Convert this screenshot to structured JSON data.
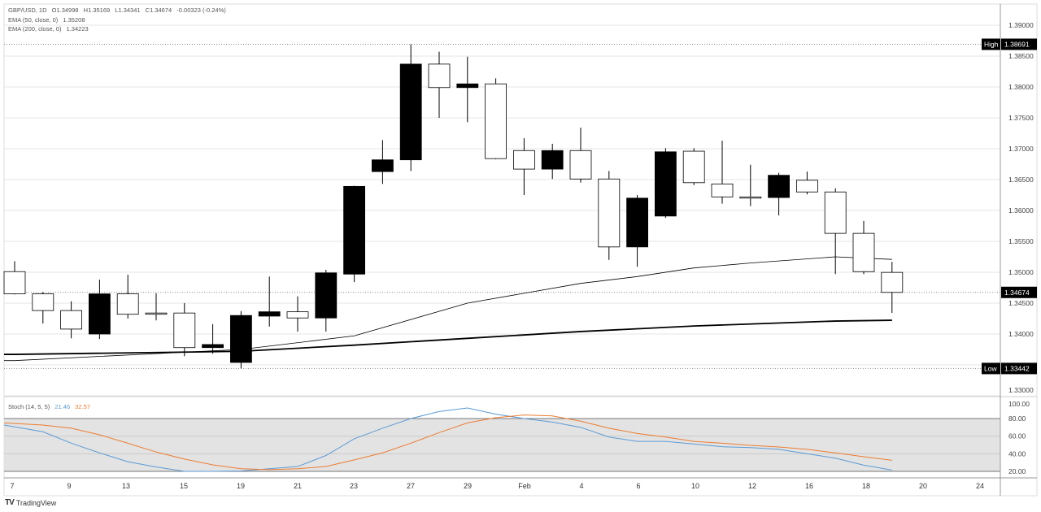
{
  "header": {
    "symbol": "GBP/USD, 1D",
    "open": "O1.34998",
    "high": "H1.35169",
    "low": "L1.34341",
    "close": "C1.34674",
    "change": "-0.00323 (-0.24%)",
    "ema50_label": "EMA (50, close, 0)",
    "ema50_value": "1.35208",
    "ema200_label": "EMA (200, close, 0)",
    "ema200_value": "1.34223"
  },
  "stoch_legend": {
    "label": "Stoch (14, 5, 5)",
    "k_value": "21.46",
    "d_value": "32.57"
  },
  "footer": {
    "logo_text": "TradingView"
  },
  "colors": {
    "up_fill": "#000000",
    "down_fill": "#ffffff",
    "candle_border": "#000000",
    "ema50": "#000000",
    "ema200": "#000000",
    "stoch_k": "#5b9bd5",
    "stoch_d": "#ed7d31",
    "stoch_band": "#e3e3e3"
  },
  "chart_data": [
    {
      "type": "candlestick",
      "title": "GBP/USD, 1D",
      "ylim": [
        1.3285,
        1.3915
      ],
      "y_ticks": [
        "1.39000",
        "1.38500",
        "1.38000",
        "1.37500",
        "1.37000",
        "1.36500",
        "1.36000",
        "1.35500",
        "1.35000",
        "1.34500",
        "1.34000",
        "1.33000"
      ],
      "x_tick_labels": [
        "7",
        "9",
        "13",
        "15",
        "19",
        "21",
        "23",
        "27",
        "29",
        "Feb",
        "4",
        "6",
        "10",
        "12",
        "16",
        "18",
        "20",
        "24"
      ],
      "grid": true,
      "markers": [
        {
          "label": "High",
          "value": "1.38691"
        },
        {
          "label": "",
          "value": "1.34674"
        },
        {
          "label": "Low",
          "value": "1.33442"
        }
      ],
      "candles": [
        {
          "o": 1.3501,
          "h": 1.3518,
          "l": 1.3464,
          "c": 1.3465
        },
        {
          "o": 1.3465,
          "h": 1.3468,
          "l": 1.3417,
          "c": 1.3438
        },
        {
          "o": 1.3438,
          "h": 1.3453,
          "l": 1.3393,
          "c": 1.3408
        },
        {
          "o": 1.34,
          "h": 1.3488,
          "l": 1.3392,
          "c": 1.3465
        },
        {
          "o": 1.3465,
          "h": 1.3496,
          "l": 1.3425,
          "c": 1.3432
        },
        {
          "o": 1.3434,
          "h": 1.3466,
          "l": 1.3422,
          "c": 1.3432
        },
        {
          "o": 1.3434,
          "h": 1.345,
          "l": 1.3364,
          "c": 1.3378
        },
        {
          "o": 1.3378,
          "h": 1.3416,
          "l": 1.3368,
          "c": 1.3383
        },
        {
          "o": 1.3354,
          "h": 1.3437,
          "l": 1.33442,
          "c": 1.343
        },
        {
          "o": 1.3429,
          "h": 1.3493,
          "l": 1.3412,
          "c": 1.3436
        },
        {
          "o": 1.3436,
          "h": 1.3461,
          "l": 1.3404,
          "c": 1.3426
        },
        {
          "o": 1.3426,
          "h": 1.3504,
          "l": 1.3404,
          "c": 1.3499
        },
        {
          "o": 1.3497,
          "h": 1.364,
          "l": 1.3484,
          "c": 1.3639
        },
        {
          "o": 1.3663,
          "h": 1.3714,
          "l": 1.3643,
          "c": 1.3682
        },
        {
          "o": 1.3682,
          "h": 1.38691,
          "l": 1.3664,
          "c": 1.3837
        },
        {
          "o": 1.3837,
          "h": 1.3857,
          "l": 1.375,
          "c": 1.3799
        },
        {
          "o": 1.3799,
          "h": 1.3849,
          "l": 1.3743,
          "c": 1.3805
        },
        {
          "o": 1.3805,
          "h": 1.3814,
          "l": 1.3683,
          "c": 1.3684
        },
        {
          "o": 1.3697,
          "h": 1.3717,
          "l": 1.3625,
          "c": 1.3667
        },
        {
          "o": 1.3667,
          "h": 1.3708,
          "l": 1.3651,
          "c": 1.3697
        },
        {
          "o": 1.3697,
          "h": 1.3734,
          "l": 1.3645,
          "c": 1.3651
        },
        {
          "o": 1.3651,
          "h": 1.3664,
          "l": 1.352,
          "c": 1.3541
        },
        {
          "o": 1.3541,
          "h": 1.3625,
          "l": 1.3509,
          "c": 1.362
        },
        {
          "o": 1.3591,
          "h": 1.3701,
          "l": 1.3588,
          "c": 1.3695
        },
        {
          "o": 1.3696,
          "h": 1.3701,
          "l": 1.3641,
          "c": 1.3645
        },
        {
          "o": 1.3643,
          "h": 1.3713,
          "l": 1.3611,
          "c": 1.3622
        },
        {
          "o": 1.3622,
          "h": 1.3674,
          "l": 1.3607,
          "c": 1.3622
        },
        {
          "o": 1.3621,
          "h": 1.3661,
          "l": 1.3592,
          "c": 1.3657
        },
        {
          "o": 1.3649,
          "h": 1.3663,
          "l": 1.3626,
          "c": 1.363
        },
        {
          "o": 1.363,
          "h": 1.3636,
          "l": 1.3497,
          "c": 1.3563
        },
        {
          "o": 1.3563,
          "h": 1.3583,
          "l": 1.3497,
          "c": 1.3501
        },
        {
          "o": 1.34998,
          "h": 1.35169,
          "l": 1.34341,
          "c": 1.34674
        }
      ],
      "series": [
        {
          "name": "EMA (50, close, 0)",
          "points": [
            [
              0,
              1.3357
            ],
            [
              8,
              1.3375
            ],
            [
              12,
              1.3397
            ],
            [
              16,
              1.345
            ],
            [
              20,
              1.3482
            ],
            [
              22,
              1.3493
            ],
            [
              24,
              1.3507
            ],
            [
              26,
              1.3515
            ],
            [
              29,
              1.3525
            ],
            [
              31,
              1.35208
            ]
          ]
        },
        {
          "name": "EMA (200, close, 0)",
          "points": [
            [
              0,
              1.3367
            ],
            [
              8,
              1.3372
            ],
            [
              12,
              1.3382
            ],
            [
              16,
              1.3393
            ],
            [
              20,
              1.3404
            ],
            [
              24,
              1.3413
            ],
            [
              29,
              1.3421
            ],
            [
              31,
              1.34223
            ]
          ]
        }
      ]
    },
    {
      "type": "line",
      "title": "Stoch (14, 5, 5)",
      "ylim": [
        0,
        100
      ],
      "y_ticks": [
        "100.00",
        "80.00",
        "60.00",
        "40.00",
        "20.00"
      ],
      "band": [
        20,
        80
      ],
      "series": [
        {
          "name": "%K",
          "values": [
            72.6,
            65,
            52,
            41,
            31,
            25,
            20,
            20,
            20.5,
            23,
            25.5,
            38,
            57,
            69,
            80,
            88,
            92,
            85,
            80,
            76,
            70,
            59,
            54,
            54,
            51,
            48,
            47,
            45,
            40,
            35,
            27,
            21.46
          ]
        },
        {
          "name": "%D",
          "values": [
            75,
            72.6,
            69,
            61.5,
            52,
            42,
            34,
            27.4,
            23,
            22,
            23,
            25.5,
            33,
            41,
            52,
            64,
            75,
            81,
            84,
            83,
            77,
            69,
            63,
            59,
            54,
            52,
            49.5,
            47.7,
            45,
            41,
            36.6,
            32.57
          ]
        }
      ]
    }
  ]
}
